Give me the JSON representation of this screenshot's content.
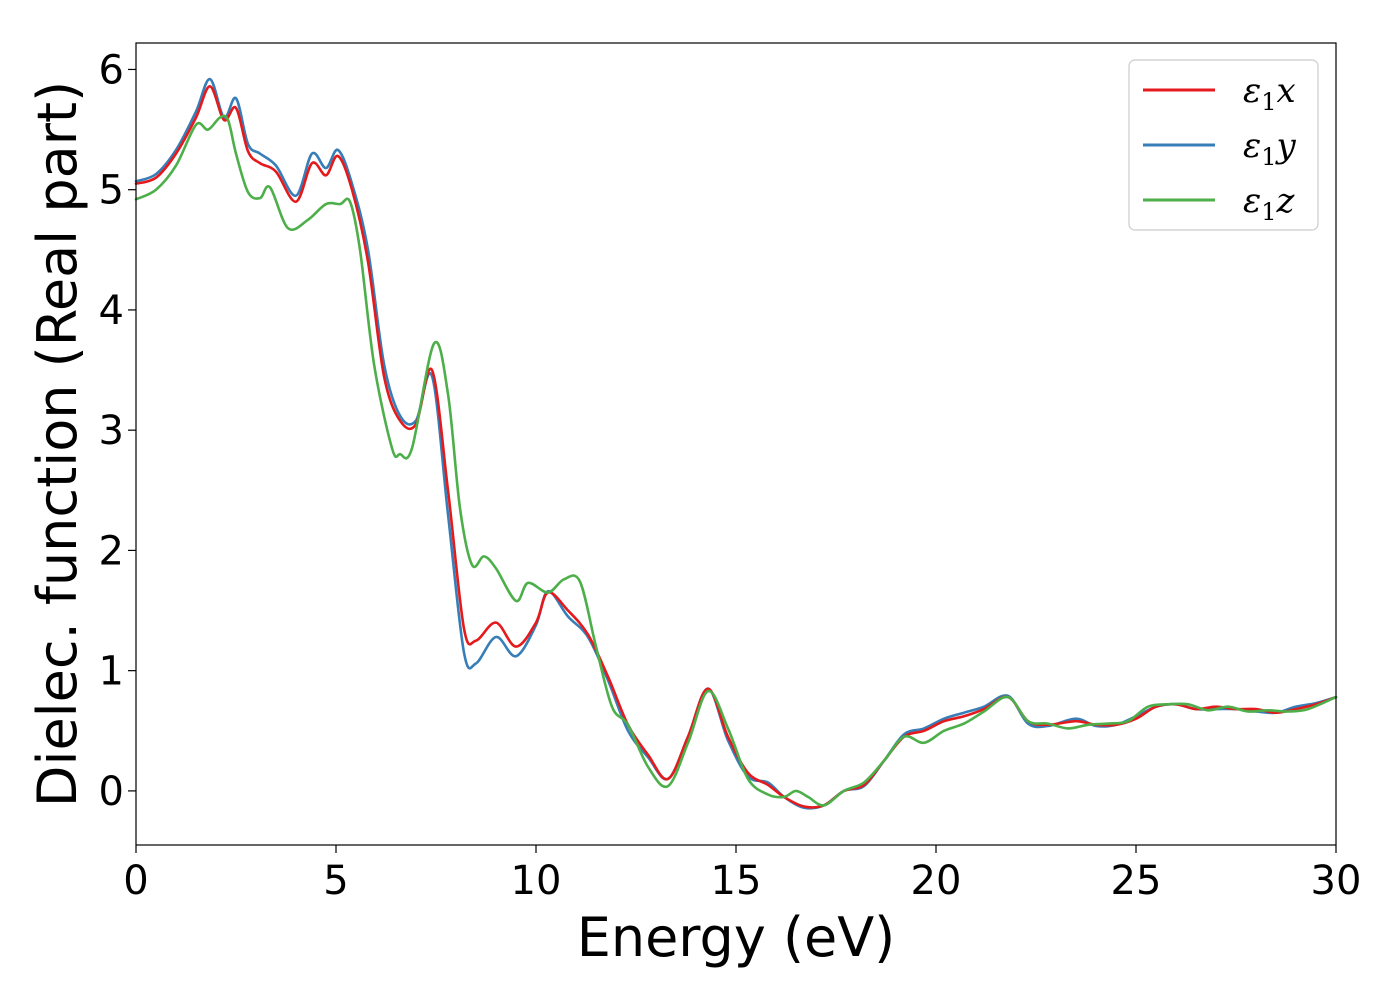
{
  "chart_data": {
    "type": "line",
    "title": "",
    "xlabel": "Energy (eV)",
    "ylabel": "Dielec. function (Real part)",
    "xlim": [
      0,
      30
    ],
    "ylim": [
      -0.45,
      6.22
    ],
    "xticks": [
      "0",
      "5",
      "10",
      "15",
      "20",
      "25",
      "30"
    ],
    "yticks": [
      "0",
      "1",
      "2",
      "3",
      "4",
      "5",
      "6"
    ],
    "grid": false,
    "legend_position": "top-right",
    "series": [
      {
        "name": "ε1x",
        "legend_symbol": "ε",
        "legend_sub": "1",
        "legend_var": "x",
        "color": "#e41a1c",
        "x": [
          0,
          0.5,
          1,
          1.5,
          1.85,
          2.2,
          2.5,
          2.8,
          3.1,
          3.5,
          4,
          4.4,
          4.75,
          5.05,
          5.4,
          5.8,
          6.2,
          6.6,
          7,
          7.4,
          7.8,
          8.2,
          8.5,
          9,
          9.5,
          10,
          10.3,
          10.8,
          11.3,
          11.8,
          12.3,
          12.8,
          13.3,
          13.8,
          14.3,
          14.8,
          15.3,
          15.8,
          16.2,
          16.7,
          17.2,
          17.7,
          18.2,
          18.7,
          19.2,
          19.7,
          20.2,
          20.7,
          21.2,
          21.8,
          22.3,
          22.8,
          23.5,
          24,
          24.5,
          25,
          25.5,
          26,
          26.5,
          27,
          27.5,
          28,
          28.5,
          29,
          29.5,
          30
        ],
        "y": [
          5.05,
          5.1,
          5.3,
          5.6,
          5.86,
          5.58,
          5.68,
          5.32,
          5.22,
          5.15,
          4.9,
          5.22,
          5.12,
          5.28,
          5.0,
          4.4,
          3.45,
          3.08,
          3.05,
          3.5,
          2.5,
          1.35,
          1.25,
          1.4,
          1.2,
          1.4,
          1.65,
          1.5,
          1.3,
          0.95,
          0.55,
          0.3,
          0.1,
          0.45,
          0.85,
          0.45,
          0.15,
          0.05,
          -0.05,
          -0.13,
          -0.12,
          0.0,
          0.05,
          0.25,
          0.45,
          0.5,
          0.58,
          0.62,
          0.68,
          0.78,
          0.58,
          0.55,
          0.58,
          0.55,
          0.55,
          0.6,
          0.7,
          0.72,
          0.68,
          0.7,
          0.68,
          0.68,
          0.65,
          0.68,
          0.72,
          0.78
        ]
      },
      {
        "name": "ε1y",
        "legend_symbol": "ε",
        "legend_sub": "1",
        "legend_var": "y",
        "color": "#377eb8",
        "x": [
          0,
          0.5,
          1,
          1.5,
          1.85,
          2.2,
          2.5,
          2.8,
          3.1,
          3.5,
          4,
          4.4,
          4.75,
          5.05,
          5.4,
          5.8,
          6.2,
          6.6,
          7,
          7.4,
          7.8,
          8.2,
          8.5,
          9,
          9.5,
          10,
          10.3,
          10.8,
          11.3,
          11.8,
          12.3,
          12.8,
          13.3,
          13.8,
          14.3,
          14.8,
          15.3,
          15.8,
          16.2,
          16.7,
          17.2,
          17.7,
          18.2,
          18.7,
          19.2,
          19.7,
          20.2,
          20.7,
          21.2,
          21.8,
          22.3,
          22.8,
          23.5,
          24,
          24.5,
          25,
          25.5,
          26,
          26.5,
          27,
          27.5,
          28,
          28.5,
          29,
          29.5,
          30
        ],
        "y": [
          5.07,
          5.13,
          5.33,
          5.65,
          5.92,
          5.6,
          5.76,
          5.38,
          5.3,
          5.2,
          4.95,
          5.3,
          5.18,
          5.33,
          5.05,
          4.5,
          3.55,
          3.12,
          3.08,
          3.45,
          2.3,
          1.15,
          1.06,
          1.28,
          1.12,
          1.38,
          1.66,
          1.45,
          1.28,
          0.92,
          0.5,
          0.28,
          0.1,
          0.45,
          0.85,
          0.42,
          0.12,
          0.07,
          -0.05,
          -0.14,
          -0.12,
          0.0,
          0.04,
          0.25,
          0.47,
          0.52,
          0.6,
          0.65,
          0.7,
          0.79,
          0.56,
          0.54,
          0.6,
          0.54,
          0.55,
          0.62,
          0.7,
          0.72,
          0.68,
          0.68,
          0.68,
          0.66,
          0.65,
          0.7,
          0.73,
          0.78
        ]
      },
      {
        "name": "ε1z",
        "legend_symbol": "ε",
        "legend_sub": "1",
        "legend_var": "z",
        "color": "#4daf4a",
        "x": [
          0,
          0.5,
          1,
          1.5,
          1.8,
          2.1,
          2.3,
          2.5,
          2.8,
          3.1,
          3.35,
          3.8,
          4.3,
          4.75,
          5.1,
          5.35,
          5.6,
          5.95,
          6.4,
          6.6,
          6.9,
          7.45,
          7.8,
          8.1,
          8.4,
          8.7,
          9,
          9.5,
          9.8,
          10.3,
          10.7,
          11.1,
          11.5,
          11.9,
          12.3,
          12.8,
          13.3,
          13.8,
          14.3,
          14.8,
          15.3,
          15.8,
          16.2,
          16.5,
          16.8,
          17.2,
          17.7,
          18.2,
          18.7,
          19.2,
          19.7,
          20.2,
          20.7,
          21.2,
          21.8,
          22.3,
          22.8,
          23.3,
          23.8,
          24.3,
          24.8,
          25.3,
          25.8,
          26.3,
          26.8,
          27.3,
          27.8,
          28.3,
          28.8,
          29.3,
          30
        ],
        "y": [
          4.92,
          5.0,
          5.2,
          5.54,
          5.5,
          5.6,
          5.58,
          5.3,
          4.98,
          4.93,
          5.02,
          4.68,
          4.75,
          4.88,
          4.88,
          4.9,
          4.5,
          3.55,
          2.85,
          2.8,
          2.85,
          3.72,
          3.3,
          2.35,
          1.88,
          1.95,
          1.85,
          1.58,
          1.73,
          1.65,
          1.76,
          1.74,
          1.2,
          0.7,
          0.55,
          0.2,
          0.04,
          0.4,
          0.83,
          0.52,
          0.1,
          -0.03,
          -0.05,
          0.0,
          -0.05,
          -0.12,
          0.0,
          0.07,
          0.25,
          0.45,
          0.4,
          0.5,
          0.56,
          0.66,
          0.78,
          0.58,
          0.56,
          0.52,
          0.55,
          0.56,
          0.58,
          0.7,
          0.72,
          0.72,
          0.67,
          0.7,
          0.66,
          0.67,
          0.66,
          0.68,
          0.78
        ]
      }
    ]
  }
}
